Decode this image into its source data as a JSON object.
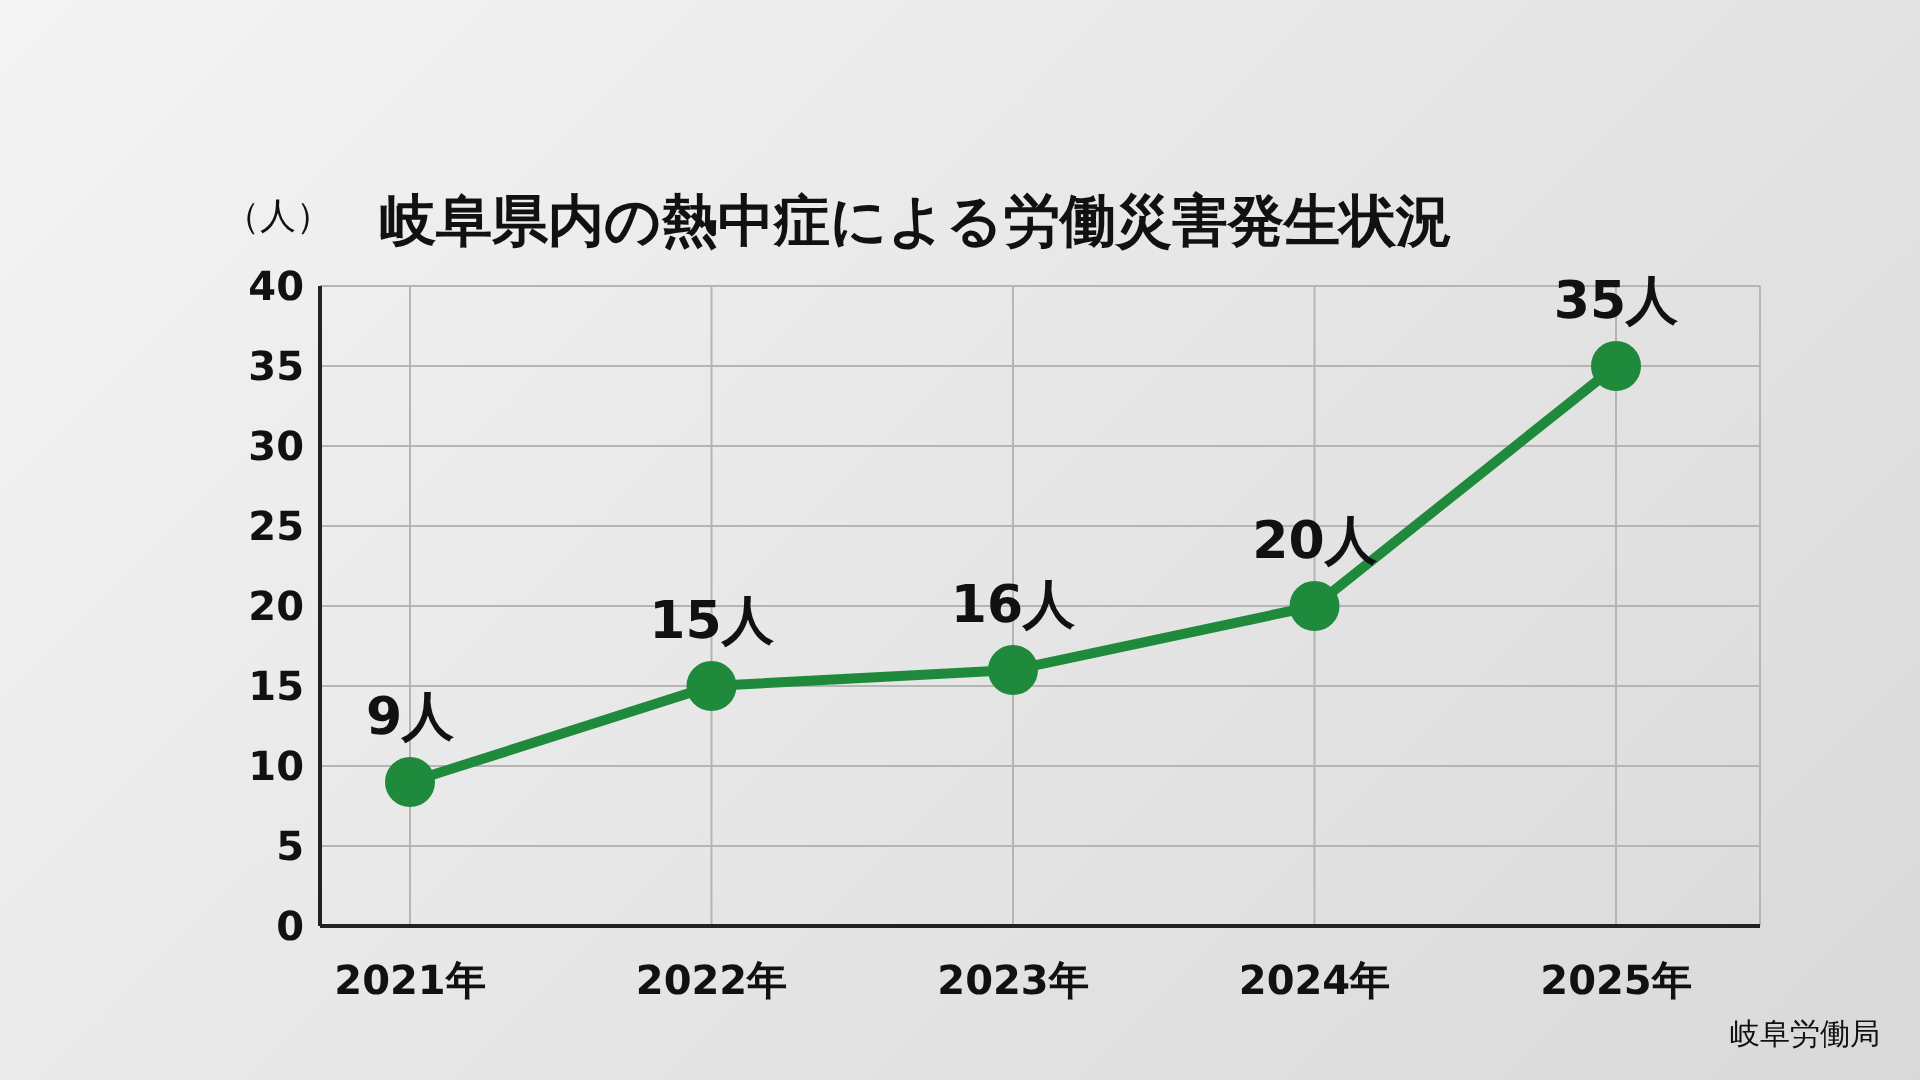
{
  "chart_data": {
    "type": "line",
    "title": "岐阜県内の熱中症による労働災害発生状況",
    "ylabel": "（人）",
    "annotations": [
      "岐阜労働局"
    ],
    "categories": [
      "2021年",
      "2022年",
      "2023年",
      "2024年",
      "2025年"
    ],
    "series": [
      {
        "color": "#1f8a3c",
        "values": [
          9,
          15,
          16,
          20,
          35
        ],
        "value_labels": [
          "9人",
          "15人",
          "16人",
          "20人",
          "35人"
        ]
      }
    ],
    "ylim": [
      0,
      40
    ],
    "yticks": [
      0,
      5,
      10,
      15,
      20,
      25,
      30,
      35,
      40
    ],
    "grid": true,
    "marker": "circle",
    "line_style": "solid",
    "legend": false
  }
}
